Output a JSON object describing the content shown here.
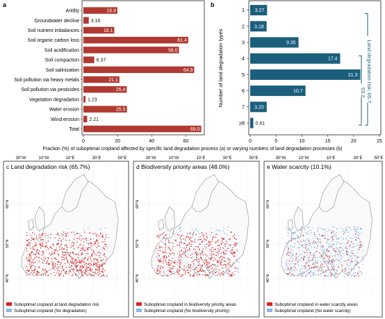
{
  "chart_data": [
    {
      "panel": "a",
      "type": "bar",
      "orientation": "horizontal",
      "color": "#b03a32",
      "categories": [
        "Aridity",
        "Groundwater decline",
        "Soil nutrient imbalances",
        "Soil organic carbon loss",
        "Soil acidification",
        "Soil compaction",
        "Soil salinization",
        "Soil pollution via heavy metals",
        "Soil pollution via pesticides",
        "Vegetation degradation",
        "Water erosion",
        "Wind erosion",
        "Total"
      ],
      "values": [
        19.9,
        3.16,
        18.1,
        61.4,
        56.0,
        6.37,
        64.9,
        21.1,
        25.4,
        1.23,
        25.5,
        2.21,
        69.0
      ],
      "value_labels": [
        "19.9",
        "3.16",
        "18.1",
        "61.4",
        "56.0",
        "6.37",
        "64.9",
        "21.1",
        "25.4",
        "1.23",
        "25.5",
        "2.21",
        "69.0"
      ],
      "xlim": [
        0,
        70
      ],
      "xticks": [
        "0",
        "20",
        "40",
        "60"
      ]
    },
    {
      "panel": "b",
      "type": "bar",
      "orientation": "horizontal",
      "color": "#1b5f7c",
      "categories": [
        "1",
        "2",
        "3",
        "4",
        "5",
        "6",
        "7",
        "≥8"
      ],
      "values": [
        3.27,
        3.18,
        9.35,
        17.4,
        21.3,
        10.7,
        3.2,
        0.61
      ],
      "value_labels": [
        "3.27",
        "3.18",
        "9.35",
        "17.4",
        "21.3",
        "10.7",
        "3.20",
        "0.61"
      ],
      "xlim": [
        0,
        25
      ],
      "xticks": [
        "0",
        "5",
        "10",
        "15",
        "20",
        "25"
      ],
      "ylabel": "Number of land degradation types",
      "bracket_labels": [
        "Land degradation risk: 65.7",
        "53.2"
      ]
    }
  ],
  "shared_xlabel": "Fraction (%) of suboptimal cropland affected by specific land degradation process (a) or varying numbers of land degradation processes (b)",
  "maps": [
    {
      "panel_label": "c Land degradation risk (65.7%)",
      "highlight_color": "#e02020",
      "legend": [
        "Suboptimal cropland at land degradation risk",
        "Suboptimal cropland (No degradation)"
      ]
    },
    {
      "panel_label": "d Biodiversity priority areas (48.0%)",
      "highlight_color": "#e02020",
      "legend": [
        "Suboptimal cropland in biodiversity priority areas",
        "Suboptimal cropland (No biodiversity priority)"
      ]
    },
    {
      "panel_label": "e Water scarcity (10.1%)",
      "highlight_color": "#e02020",
      "legend": [
        "Suboptimal cropland in water scarcity areas",
        "Suboptimal cropland (No water scarcity)"
      ]
    }
  ],
  "map_lon_labels": [
    "30°W",
    "10°W",
    "10°E",
    "30°E",
    "50°E"
  ],
  "map_lat_labels": [
    "60°N",
    "50°N",
    "40°N"
  ],
  "legend_base_color": "#8eb4e3"
}
